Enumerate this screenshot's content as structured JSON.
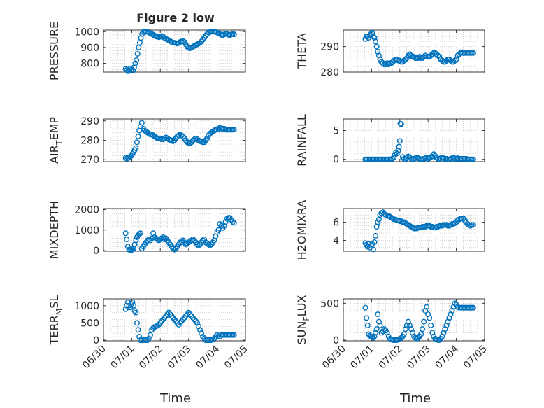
{
  "figure": {
    "title": "Figure 2 low",
    "xlabel": "Time"
  },
  "style": {
    "marker_color": "#0072BD",
    "axis_color": "#262626",
    "grid_color": "#bdbdbd"
  },
  "x_ticks": [
    "06/30",
    "07/01",
    "07/02",
    "07/03",
    "07/04",
    "07/05"
  ],
  "chart_data": [
    {
      "type": "scatter",
      "title": "Figure 2 low",
      "ylabel": "PRESSURE",
      "ylabel_sub": "",
      "xlim": [
        0,
        5
      ],
      "ylim": [
        745,
        1010
      ],
      "yticks": [
        800,
        900,
        1000
      ],
      "grid": true,
      "x": [
        0.78,
        0.82,
        0.86,
        0.9,
        0.94,
        0.98,
        1.0,
        1.04,
        1.08,
        1.12,
        1.16,
        1.2,
        1.24,
        1.28,
        1.32,
        1.36,
        1.4,
        1.45,
        1.5,
        1.55,
        1.6,
        1.65,
        1.7,
        1.75,
        1.8,
        1.85,
        1.9,
        1.95,
        2.0,
        2.05,
        2.1,
        2.15,
        2.2,
        2.25,
        2.3,
        2.35,
        2.4,
        2.45,
        2.5,
        2.55,
        2.6,
        2.65,
        2.7,
        2.75,
        2.8,
        2.85,
        2.9,
        2.95,
        3.0,
        3.05,
        3.1,
        3.15,
        3.2,
        3.25,
        3.3,
        3.35,
        3.4,
        3.45,
        3.5,
        3.55,
        3.6,
        3.65,
        3.7,
        3.75,
        3.8,
        3.85,
        3.9,
        3.95,
        4.0,
        4.05,
        4.1,
        4.15,
        4.2,
        4.25,
        4.3,
        4.35,
        4.4,
        4.45,
        4.5,
        4.55,
        4.6
      ],
      "y": [
        765,
        758,
        750,
        752,
        768,
        760,
        762,
        755,
        775,
        800,
        820,
        860,
        900,
        930,
        960,
        985,
        998,
        1000,
        1000,
        1000,
        995,
        990,
        985,
        980,
        975,
        970,
        968,
        965,
        968,
        972,
        968,
        960,
        955,
        950,
        945,
        940,
        935,
        930,
        930,
        928,
        925,
        928,
        935,
        938,
        940,
        935,
        920,
        905,
        898,
        895,
        900,
        905,
        910,
        915,
        920,
        925,
        930,
        938,
        950,
        962,
        975,
        985,
        995,
        998,
        1000,
        1000,
        1000,
        998,
        995,
        990,
        985,
        980,
        978,
        982,
        988,
        985,
        980,
        978,
        982,
        985,
        983
      ]
    },
    {
      "type": "scatter",
      "ylabel": "THETA",
      "ylabel_sub": "",
      "xlim": [
        0,
        5
      ],
      "ylim": [
        280,
        296.5
      ],
      "yticks": [
        280,
        290
      ],
      "grid": true,
      "x": [
        0.78,
        0.82,
        0.86,
        0.9,
        0.94,
        0.98,
        1.02,
        1.06,
        1.1,
        1.14,
        1.18,
        1.22,
        1.26,
        1.3,
        1.35,
        1.4,
        1.45,
        1.5,
        1.55,
        1.6,
        1.65,
        1.7,
        1.75,
        1.8,
        1.85,
        1.9,
        1.95,
        2.0,
        2.05,
        2.1,
        2.15,
        2.2,
        2.25,
        2.3,
        2.35,
        2.4,
        2.45,
        2.5,
        2.55,
        2.6,
        2.65,
        2.7,
        2.75,
        2.8,
        2.85,
        2.9,
        2.95,
        3.0,
        3.05,
        3.1,
        3.15,
        3.2,
        3.25,
        3.3,
        3.35,
        3.4,
        3.45,
        3.5,
        3.55,
        3.6,
        3.65,
        3.7,
        3.75,
        3.8,
        3.85,
        3.9,
        3.95,
        4.0,
        4.05,
        4.1,
        4.15,
        4.2,
        4.25,
        4.3,
        4.35,
        4.4,
        4.45,
        4.5,
        4.55,
        4.6
      ],
      "y": [
        293,
        294,
        294,
        293.5,
        294.5,
        295,
        295.5,
        294,
        293.5,
        292,
        290,
        288,
        286.5,
        285,
        284,
        283.5,
        283,
        283,
        283.5,
        283,
        283.5,
        283.5,
        284,
        284.5,
        285,
        285,
        284.5,
        284.5,
        284,
        284,
        284.5,
        285,
        285.5,
        286.5,
        287,
        286.5,
        286,
        286,
        285.5,
        285.5,
        285.5,
        286,
        285.5,
        285.5,
        286,
        286.5,
        286,
        286,
        286,
        286.5,
        287,
        287.5,
        287.5,
        287,
        286.5,
        286,
        285,
        284.5,
        284,
        284,
        284.5,
        285,
        285,
        284.5,
        284,
        284,
        284.5,
        285,
        286.5,
        287,
        287.5,
        287.5,
        287.5,
        287.5,
        287.5,
        287.5,
        287.5,
        287.5,
        287.5,
        287.5
      ]
    },
    {
      "type": "scatter",
      "ylabel": "AIR",
      "ylabel_sub": "T",
      "ylabel_rest": "EMP",
      "xlim": [
        0,
        5
      ],
      "ylim": [
        269,
        291
      ],
      "yticks": [
        270,
        280,
        290
      ],
      "grid": true,
      "x": [
        0.78,
        0.82,
        0.86,
        0.9,
        0.94,
        0.98,
        1.02,
        1.06,
        1.1,
        1.14,
        1.18,
        1.22,
        1.26,
        1.3,
        1.35,
        1.4,
        1.45,
        1.5,
        1.55,
        1.6,
        1.65,
        1.7,
        1.75,
        1.8,
        1.85,
        1.9,
        1.95,
        2.0,
        2.05,
        2.1,
        2.15,
        2.2,
        2.25,
        2.3,
        2.35,
        2.4,
        2.45,
        2.5,
        2.55,
        2.6,
        2.65,
        2.7,
        2.75,
        2.8,
        2.85,
        2.9,
        2.95,
        3.0,
        3.05,
        3.1,
        3.15,
        3.2,
        3.25,
        3.3,
        3.35,
        3.4,
        3.45,
        3.5,
        3.55,
        3.6,
        3.65,
        3.7,
        3.75,
        3.8,
        3.85,
        3.9,
        3.95,
        4.0,
        4.05,
        4.1,
        4.15,
        4.2,
        4.25,
        4.3,
        4.35,
        4.4,
        4.45,
        4.5,
        4.55,
        4.6
      ],
      "y": [
        271,
        270.5,
        271,
        271,
        271.5,
        272,
        273,
        274,
        275,
        276,
        279,
        282,
        285,
        287,
        289,
        286,
        285,
        284.5,
        284,
        283.5,
        283,
        283,
        282.5,
        282,
        281.5,
        281,
        281,
        281,
        280.5,
        280.5,
        281,
        281.5,
        281,
        280.5,
        280,
        280,
        279.5,
        280,
        281,
        282,
        282.5,
        283,
        282.5,
        282,
        281,
        280,
        279,
        278.5,
        278.5,
        279,
        280,
        280.5,
        281,
        280.5,
        280,
        279.5,
        279.5,
        279,
        279,
        280,
        281,
        282.5,
        283.5,
        284,
        284.5,
        285,
        285.5,
        285.5,
        286,
        286.5,
        286,
        286,
        286,
        285.5,
        285.5,
        285.5,
        285.5,
        285.5,
        285.5,
        285.5
      ]
    },
    {
      "type": "scatter",
      "ylabel": "RAINFALL",
      "ylabel_sub": "",
      "xlim": [
        0,
        5
      ],
      "ylim": [
        -0.4,
        7
      ],
      "yticks": [
        0,
        5
      ],
      "grid": true,
      "x": [
        0.78,
        0.83,
        0.88,
        0.93,
        0.98,
        1.03,
        1.08,
        1.13,
        1.18,
        1.23,
        1.28,
        1.33,
        1.38,
        1.43,
        1.48,
        1.53,
        1.58,
        1.63,
        1.68,
        1.73,
        1.78,
        1.82,
        1.86,
        1.9,
        1.94,
        1.97,
        2.0,
        2.02,
        2.05,
        2.1,
        2.15,
        2.2,
        2.25,
        2.3,
        2.35,
        2.4,
        2.45,
        2.5,
        2.55,
        2.6,
        2.65,
        2.7,
        2.75,
        2.8,
        2.85,
        2.9,
        2.95,
        3.0,
        3.05,
        3.1,
        3.15,
        3.2,
        3.25,
        3.3,
        3.35,
        3.4,
        3.45,
        3.5,
        3.55,
        3.6,
        3.65,
        3.7,
        3.75,
        3.8,
        3.85,
        3.9,
        3.95,
        4.0,
        4.05,
        4.1,
        4.15,
        4.2,
        4.25,
        4.3,
        4.35,
        4.4,
        4.45,
        4.5,
        4.55,
        4.6
      ],
      "y": [
        0,
        0,
        0,
        0,
        0,
        0,
        0,
        0,
        0,
        0,
        0,
        0,
        0,
        0,
        0,
        0,
        0,
        0,
        0,
        0.1,
        0.3,
        0.8,
        1.2,
        1.0,
        1.5,
        2.2,
        3.2,
        6.2,
        6.1,
        0.4,
        0.1,
        0,
        0.2,
        0.5,
        0.3,
        0.1,
        0,
        0.1,
        0.2,
        0.3,
        0.2,
        0.1,
        0,
        0,
        0.1,
        0.2,
        0.3,
        0.1,
        0.2,
        0.4,
        0.5,
        0.9,
        0.6,
        0.3,
        0.1,
        0,
        0.2,
        0.3,
        0.2,
        0.1,
        0.1,
        0,
        0,
        0.1,
        0.2,
        0.3,
        0.1,
        0.1,
        0.2,
        0.1,
        0.1,
        0.1,
        0.1,
        0.1,
        0.1,
        0,
        0,
        0,
        0,
        0
      ]
    },
    {
      "type": "scatter",
      "ylabel": "MIXDEPTH",
      "ylabel_sub": "",
      "xlim": [
        0,
        5
      ],
      "ylim": [
        -30,
        2050
      ],
      "yticks": [
        0,
        1000,
        2000
      ],
      "grid": true,
      "x": [
        0.78,
        0.82,
        0.86,
        0.9,
        0.94,
        0.98,
        1.02,
        1.06,
        1.1,
        1.14,
        1.18,
        1.22,
        1.26,
        1.3,
        1.35,
        1.4,
        1.45,
        1.5,
        1.55,
        1.6,
        1.65,
        1.7,
        1.75,
        1.8,
        1.85,
        1.9,
        1.95,
        2.0,
        2.05,
        2.1,
        2.15,
        2.2,
        2.25,
        2.3,
        2.35,
        2.4,
        2.45,
        2.5,
        2.55,
        2.6,
        2.65,
        2.7,
        2.75,
        2.8,
        2.85,
        2.9,
        2.95,
        3.0,
        3.05,
        3.1,
        3.15,
        3.2,
        3.25,
        3.3,
        3.35,
        3.4,
        3.45,
        3.5,
        3.55,
        3.6,
        3.65,
        3.7,
        3.75,
        3.8,
        3.85,
        3.9,
        3.95,
        4.0,
        4.05,
        4.1,
        4.15,
        4.2,
        4.25,
        4.3,
        4.35,
        4.4,
        4.45,
        4.5,
        4.55,
        4.6
      ],
      "y": [
        850,
        550,
        200,
        50,
        30,
        20,
        60,
        100,
        300,
        500,
        650,
        750,
        800,
        850,
        100,
        200,
        300,
        400,
        500,
        550,
        500,
        600,
        850,
        650,
        600,
        550,
        500,
        550,
        600,
        650,
        550,
        600,
        500,
        400,
        300,
        200,
        100,
        50,
        100,
        200,
        300,
        400,
        450,
        500,
        400,
        300,
        350,
        400,
        450,
        500,
        550,
        500,
        400,
        300,
        250,
        300,
        400,
        500,
        550,
        400,
        350,
        300,
        250,
        300,
        400,
        500,
        700,
        900,
        1000,
        1300,
        1200,
        1100,
        1200,
        1400,
        1550,
        1600,
        1600,
        1500,
        1400,
        1350
      ]
    },
    {
      "type": "scatter",
      "ylabel": "H2OMIXRA",
      "ylabel_sub": "",
      "xlim": [
        0,
        5
      ],
      "ylim": [
        2.8,
        7.5
      ],
      "yticks": [
        4,
        6
      ],
      "grid": true,
      "x": [
        0.78,
        0.82,
        0.86,
        0.9,
        0.94,
        0.98,
        1.02,
        1.06,
        1.1,
        1.14,
        1.18,
        1.22,
        1.26,
        1.3,
        1.35,
        1.4,
        1.45,
        1.5,
        1.55,
        1.6,
        1.65,
        1.7,
        1.75,
        1.8,
        1.85,
        1.9,
        1.95,
        2.0,
        2.05,
        2.1,
        2.15,
        2.2,
        2.25,
        2.3,
        2.35,
        2.4,
        2.45,
        2.5,
        2.55,
        2.6,
        2.65,
        2.7,
        2.75,
        2.8,
        2.85,
        2.9,
        2.95,
        3.0,
        3.05,
        3.1,
        3.15,
        3.2,
        3.25,
        3.3,
        3.35,
        3.4,
        3.45,
        3.5,
        3.55,
        3.6,
        3.65,
        3.7,
        3.75,
        3.8,
        3.85,
        3.9,
        3.95,
        4.0,
        4.05,
        4.1,
        4.15,
        4.2,
        4.25,
        4.3,
        4.35,
        4.4,
        4.45,
        4.5,
        4.55,
        4.6
      ],
      "y": [
        3.7,
        3.5,
        3.3,
        3.6,
        3.2,
        3.4,
        3.6,
        3.0,
        3.8,
        4.5,
        5.5,
        6.0,
        6.3,
        6.8,
        7.0,
        7.1,
        6.9,
        6.8,
        6.7,
        6.7,
        6.6,
        6.5,
        6.4,
        6.3,
        6.3,
        6.2,
        6.2,
        6.1,
        6.1,
        6.0,
        6.0,
        5.9,
        5.8,
        5.7,
        5.6,
        5.5,
        5.4,
        5.3,
        5.3,
        5.3,
        5.4,
        5.4,
        5.4,
        5.5,
        5.5,
        5.5,
        5.6,
        5.6,
        5.6,
        5.5,
        5.5,
        5.4,
        5.4,
        5.5,
        5.5,
        5.6,
        5.6,
        5.6,
        5.7,
        5.7,
        5.7,
        5.6,
        5.6,
        5.7,
        5.8,
        5.8,
        5.9,
        6.0,
        6.2,
        6.3,
        6.4,
        6.4,
        6.4,
        6.2,
        6.0,
        5.8,
        5.7,
        5.6,
        5.7,
        5.7
      ]
    },
    {
      "type": "scatter",
      "ylabel": "TERR",
      "ylabel_sub": "M",
      "ylabel_rest": "SL",
      "xlim": [
        0,
        5
      ],
      "ylim": [
        -20,
        1200
      ],
      "yticks": [
        0,
        500,
        1000
      ],
      "grid": true,
      "x": [
        0.78,
        0.82,
        0.86,
        0.9,
        0.94,
        0.98,
        1.02,
        1.06,
        1.1,
        1.14,
        1.18,
        1.22,
        1.26,
        1.3,
        1.35,
        1.4,
        1.45,
        1.5,
        1.55,
        1.6,
        1.65,
        1.7,
        1.75,
        1.8,
        1.85,
        1.9,
        1.95,
        2.0,
        2.05,
        2.1,
        2.15,
        2.2,
        2.25,
        2.3,
        2.35,
        2.4,
        2.45,
        2.5,
        2.55,
        2.6,
        2.65,
        2.7,
        2.75,
        2.8,
        2.85,
        2.9,
        2.95,
        3.0,
        3.05,
        3.1,
        3.15,
        3.2,
        3.25,
        3.3,
        3.35,
        3.4,
        3.45,
        3.5,
        3.55,
        3.6,
        3.65,
        3.7,
        3.75,
        3.8,
        3.85,
        3.9,
        3.95,
        4.0,
        4.05,
        4.1,
        4.15,
        4.2,
        4.25,
        4.3,
        4.35,
        4.4,
        4.45,
        4.5,
        4.55,
        4.6
      ],
      "y": [
        900,
        1000,
        1100,
        1000,
        950,
        1050,
        1100,
        1000,
        850,
        800,
        500,
        300,
        100,
        0,
        0,
        0,
        0,
        0,
        0,
        50,
        150,
        300,
        350,
        380,
        400,
        420,
        450,
        500,
        550,
        600,
        650,
        700,
        750,
        800,
        750,
        700,
        650,
        600,
        550,
        500,
        450,
        500,
        550,
        600,
        650,
        700,
        750,
        800,
        750,
        700,
        650,
        600,
        550,
        500,
        400,
        300,
        200,
        100,
        50,
        0,
        0,
        0,
        0,
        0,
        20,
        50,
        100,
        150,
        120,
        100,
        150,
        150,
        150,
        150,
        150,
        150,
        150,
        150,
        150,
        150
      ]
    },
    {
      "type": "scatter",
      "ylabel": "SUN",
      "ylabel_sub": "F",
      "ylabel_rest": "LUX",
      "xlim": [
        0,
        5
      ],
      "ylim": [
        -10,
        560
      ],
      "yticks": [
        0,
        500
      ],
      "grid": true,
      "x": [
        0.78,
        0.82,
        0.86,
        0.9,
        0.94,
        0.98,
        1.02,
        1.06,
        1.1,
        1.14,
        1.18,
        1.22,
        1.26,
        1.3,
        1.35,
        1.4,
        1.45,
        1.5,
        1.55,
        1.6,
        1.65,
        1.7,
        1.75,
        1.8,
        1.85,
        1.9,
        1.95,
        2.0,
        2.05,
        2.1,
        2.15,
        2.2,
        2.25,
        2.3,
        2.35,
        2.4,
        2.45,
        2.5,
        2.55,
        2.6,
        2.65,
        2.7,
        2.75,
        2.8,
        2.85,
        2.9,
        2.95,
        3.0,
        3.05,
        3.1,
        3.15,
        3.2,
        3.25,
        3.3,
        3.35,
        3.4,
        3.45,
        3.5,
        3.55,
        3.6,
        3.65,
        3.7,
        3.75,
        3.8,
        3.85,
        3.9,
        3.95,
        4.0,
        4.05,
        4.1,
        4.15,
        4.2,
        4.25,
        4.3,
        4.35,
        4.4,
        4.45,
        4.5,
        4.55,
        4.6
      ],
      "y": [
        440,
        300,
        200,
        80,
        60,
        50,
        40,
        30,
        50,
        100,
        150,
        350,
        250,
        200,
        100,
        120,
        150,
        130,
        100,
        50,
        20,
        10,
        0,
        0,
        0,
        0,
        10,
        20,
        30,
        50,
        80,
        150,
        200,
        250,
        200,
        150,
        100,
        50,
        30,
        20,
        30,
        50,
        80,
        150,
        250,
        400,
        450,
        350,
        300,
        200,
        100,
        50,
        20,
        10,
        0,
        0,
        20,
        50,
        100,
        150,
        200,
        250,
        300,
        350,
        400,
        450,
        500,
        480,
        450,
        440,
        440,
        440,
        440,
        440,
        440,
        440,
        440,
        440,
        440,
        440
      ]
    }
  ]
}
